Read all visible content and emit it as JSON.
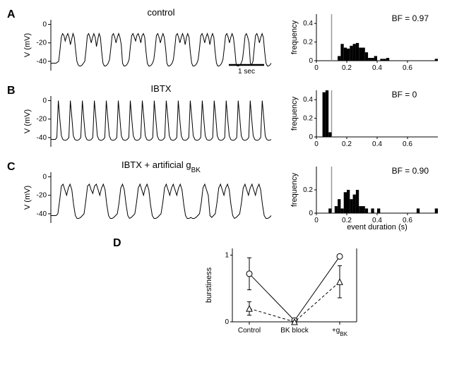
{
  "colors": {
    "trace": "#000000",
    "axis": "#000000",
    "bar": "#000000",
    "threshold_line": "#999999",
    "bg": "#ffffff"
  },
  "panel_labels": {
    "A": "A",
    "B": "B",
    "C": "C",
    "D": "D"
  },
  "trace_ylabel": "V (mV)",
  "trace_yticks": [
    0,
    -20,
    -40
  ],
  "trace_ylim": [
    -50,
    5
  ],
  "scalebar": {
    "label": "1 sec"
  },
  "panels": {
    "A": {
      "title": "control",
      "bf_label": "BF = 0.97",
      "trace": [
        -42,
        -42,
        -42,
        -42,
        -42,
        -41,
        -40,
        -28,
        -14,
        -10,
        -12,
        -18,
        -13,
        -10,
        -14,
        -22,
        -16,
        -10,
        -14,
        -28,
        -40,
        -44,
        -45,
        -45,
        -44,
        -42,
        -40,
        -28,
        -12,
        -10,
        -14,
        -20,
        -14,
        -10,
        -14,
        -24,
        -16,
        -10,
        -14,
        -30,
        -42,
        -45,
        -45,
        -44,
        -42,
        -38,
        -26,
        -12,
        -10,
        -14,
        -20,
        -14,
        -10,
        -14,
        -22,
        -42,
        -45,
        -45,
        -44,
        -42,
        -38,
        -24,
        -12,
        -10,
        -14,
        -18,
        -12,
        -10,
        -14,
        -20,
        -12,
        -10,
        -14,
        -30,
        -42,
        -45,
        -45,
        -44,
        -42,
        -38,
        -26,
        -12,
        -10,
        -14,
        -20,
        -14,
        -10,
        -14,
        -26,
        -42,
        -45,
        -45,
        -44,
        -42,
        -38,
        -26,
        -12,
        -10,
        -14,
        -20,
        -14,
        -10,
        -14,
        -22,
        -14,
        -10,
        -14,
        -30,
        -42,
        -45,
        -45,
        -44,
        -42,
        -38,
        -26,
        -12,
        -10,
        -14,
        -20,
        -14,
        -10,
        -14,
        -22,
        -14,
        -10,
        -14,
        -30,
        -42,
        -45,
        -45,
        -44,
        -42,
        -38,
        -26,
        -12,
        -10,
        -14,
        -20,
        -14,
        -10,
        -14,
        -26,
        -42,
        -45,
        -45,
        -44,
        -42,
        -38,
        -26,
        -12,
        -10,
        -14,
        -20,
        -42,
        -44,
        -40,
        -26,
        -12,
        -10,
        -14,
        -20,
        -14,
        -10,
        -14,
        -30,
        -42,
        -45,
        -45,
        -44,
        -42
      ],
      "hist": {
        "xlim": [
          0,
          0.8
        ],
        "ylim": [
          0,
          0.5
        ],
        "xticks": [
          0,
          0.2,
          0.4,
          0.6
        ],
        "yticks": [
          0,
          0.2,
          0.4
        ],
        "bin_width": 0.02,
        "threshold": 0.1,
        "bars": [
          {
            "x": 0.14,
            "y": 0.05
          },
          {
            "x": 0.16,
            "y": 0.18
          },
          {
            "x": 0.18,
            "y": 0.14
          },
          {
            "x": 0.2,
            "y": 0.13
          },
          {
            "x": 0.22,
            "y": 0.16
          },
          {
            "x": 0.24,
            "y": 0.18
          },
          {
            "x": 0.26,
            "y": 0.19
          },
          {
            "x": 0.28,
            "y": 0.14
          },
          {
            "x": 0.3,
            "y": 0.14
          },
          {
            "x": 0.32,
            "y": 0.09
          },
          {
            "x": 0.34,
            "y": 0.03
          },
          {
            "x": 0.36,
            "y": 0.03
          },
          {
            "x": 0.38,
            "y": 0.05
          },
          {
            "x": 0.42,
            "y": 0.02
          },
          {
            "x": 0.44,
            "y": 0.02
          },
          {
            "x": 0.46,
            "y": 0.03
          },
          {
            "x": 0.78,
            "y": 0.02
          }
        ]
      }
    },
    "B": {
      "title": "IBTX",
      "bf_label": "BF = 0",
      "trace": [
        -42,
        -42,
        -42,
        -42,
        -40,
        0,
        -20,
        -38,
        -42,
        -43,
        -43,
        -42,
        -40,
        0,
        -18,
        -38,
        -42,
        -43,
        -43,
        -42,
        -40,
        0,
        -20,
        -38,
        -42,
        -43,
        -43,
        -42,
        -40,
        0,
        -18,
        -38,
        -42,
        -43,
        -43,
        -42,
        -40,
        0,
        -20,
        -38,
        -42,
        -43,
        -43,
        -42,
        -40,
        0,
        -18,
        -38,
        -42,
        -43,
        -43,
        -42,
        -40,
        0,
        -20,
        -38,
        -42,
        -43,
        -43,
        -42,
        -40,
        0,
        -18,
        -38,
        -42,
        -43,
        -43,
        -42,
        -40,
        0,
        -20,
        -38,
        -42,
        -43,
        -43,
        -42,
        -40,
        0,
        -18,
        -38,
        -42,
        -43,
        -43,
        -42,
        -40,
        0,
        -20,
        -38,
        -42,
        -43,
        -43,
        -42,
        -40,
        0,
        -18,
        -38,
        -42,
        -43,
        -43,
        -42,
        -40,
        0,
        -20,
        -38,
        -42,
        -43,
        -43,
        -42,
        -40,
        0,
        -18,
        -38,
        -42,
        -43,
        -43,
        -42,
        -40,
        0,
        -20,
        -38,
        -42,
        -43,
        -43,
        -42,
        -40,
        0,
        -18,
        -38,
        -42,
        -43,
        -43,
        -42,
        -40,
        0,
        -20,
        -38,
        -42,
        -43,
        -43,
        -42,
        -40,
        0,
        -18,
        -38,
        -42,
        -43,
        -43,
        -42
      ],
      "hist": {
        "xlim": [
          0,
          0.8
        ],
        "ylim": [
          0,
          0.5
        ],
        "xticks": [
          0,
          0.2,
          0.4,
          0.6
        ],
        "yticks": [
          0,
          0.2,
          0.4
        ],
        "bin_width": 0.02,
        "threshold": 0.1,
        "bars": [
          {
            "x": 0.04,
            "y": 0.48
          },
          {
            "x": 0.06,
            "y": 0.5
          },
          {
            "x": 0.08,
            "y": 0.05
          }
        ]
      }
    },
    "C": {
      "title": "IBTX + artificial g",
      "title_sub": "BK",
      "bf_label": "BF = 0.90",
      "trace": [
        -42,
        -42,
        -42,
        -42,
        -40,
        -26,
        -10,
        -8,
        -14,
        -20,
        -12,
        -8,
        -14,
        -30,
        -42,
        -45,
        -45,
        -44,
        -42,
        -40,
        -26,
        -10,
        -8,
        -14,
        -18,
        -10,
        -8,
        -14,
        -20,
        -12,
        -8,
        -14,
        -30,
        -42,
        -45,
        -45,
        -44,
        -42,
        -40,
        -28,
        -12,
        -8,
        -14,
        -30,
        -42,
        -45,
        -44,
        -42,
        -40,
        -28,
        -12,
        -8,
        -14,
        -20,
        -12,
        -8,
        -14,
        -30,
        -42,
        -45,
        -45,
        -44,
        -42,
        -40,
        -28,
        -12,
        -8,
        -14,
        -20,
        -12,
        -8,
        -14,
        -20,
        -12,
        -8,
        -14,
        -30,
        -42,
        -45,
        -45,
        -44,
        -45,
        -45,
        -44,
        -42,
        -40,
        -28,
        -12,
        -8,
        -14,
        -20,
        -42,
        -44,
        -42,
        -40,
        -28,
        -12,
        -8,
        -14,
        -20,
        -12,
        -8,
        -14,
        -30,
        -42,
        -45,
        -44,
        -42,
        -40,
        -28,
        -12,
        -8,
        -14,
        -20,
        -12,
        -8,
        -14,
        -20,
        -12,
        -8,
        -14,
        -30,
        -42,
        -45,
        -45,
        -44,
        -42
      ],
      "hist": {
        "xlim": [
          0,
          0.8
        ],
        "ylim": [
          0,
          0.4
        ],
        "xticks": [
          0,
          0.2,
          0.4,
          0.6
        ],
        "yticks": [
          0,
          0.2
        ],
        "bin_width": 0.02,
        "threshold": 0.1,
        "bars": [
          {
            "x": 0.08,
            "y": 0.04
          },
          {
            "x": 0.12,
            "y": 0.06
          },
          {
            "x": 0.14,
            "y": 0.12
          },
          {
            "x": 0.16,
            "y": 0.04
          },
          {
            "x": 0.18,
            "y": 0.18
          },
          {
            "x": 0.2,
            "y": 0.2
          },
          {
            "x": 0.22,
            "y": 0.12
          },
          {
            "x": 0.24,
            "y": 0.16
          },
          {
            "x": 0.26,
            "y": 0.2
          },
          {
            "x": 0.28,
            "y": 0.06
          },
          {
            "x": 0.3,
            "y": 0.06
          },
          {
            "x": 0.32,
            "y": 0.04
          },
          {
            "x": 0.36,
            "y": 0.04
          },
          {
            "x": 0.4,
            "y": 0.04
          },
          {
            "x": 0.66,
            "y": 0.04
          },
          {
            "x": 0.78,
            "y": 0.04
          }
        ],
        "xlabel": "event duration (s)"
      }
    }
  },
  "hist_ylabel": "frequency",
  "panelD": {
    "ylabel": "burstiness",
    "ylim": [
      0,
      1.1
    ],
    "yticks": [
      0,
      1
    ],
    "categories": [
      "Control",
      "BK block",
      "+g"
    ],
    "cat_sub": [
      "",
      "",
      "BK"
    ],
    "series": [
      {
        "marker": "circle",
        "dash": "none",
        "points": [
          {
            "x": 0,
            "y": 0.72,
            "err": 0.24
          },
          {
            "x": 1,
            "y": 0.02,
            "err": 0.02
          },
          {
            "x": 2,
            "y": 0.98,
            "err": 0.02
          }
        ]
      },
      {
        "marker": "triangle",
        "dash": "4,3",
        "points": [
          {
            "x": 0,
            "y": 0.2,
            "err": 0.1
          },
          {
            "x": 1,
            "y": 0.0,
            "err": 0.01
          },
          {
            "x": 2,
            "y": 0.6,
            "err": 0.24
          }
        ]
      }
    ]
  }
}
